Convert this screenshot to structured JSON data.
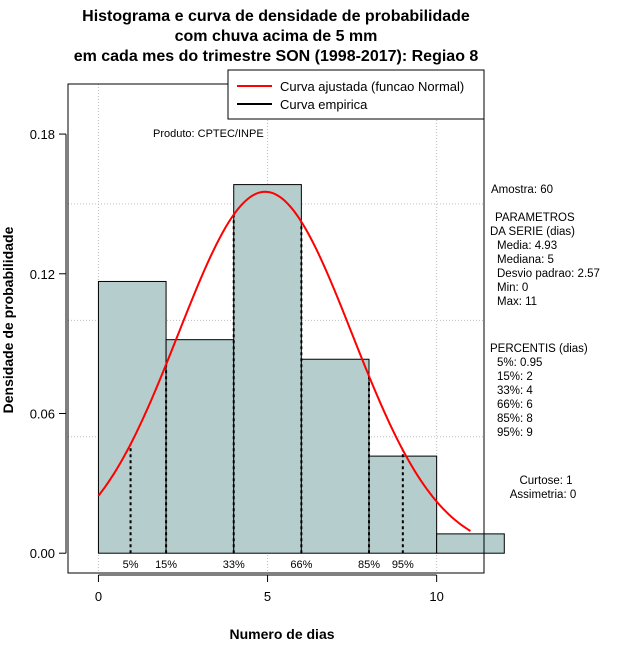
{
  "chart_data": {
    "type": "bar",
    "title": [
      "Histograma e curva de densidade de probabilidade",
      "com chuva acima de 5 mm",
      "em cada mes do trimestre SON (1998-2017): Regiao 8"
    ],
    "xlabel": "Numero de dias",
    "ylabel": "Densidade de probabilidade",
    "xlim": [
      -0.9,
      11.4
    ],
    "ylim": [
      -0.0085,
      0.2015
    ],
    "x_ticks": [
      0,
      5,
      10
    ],
    "x_tick_labels": [
      "0",
      "5",
      "10"
    ],
    "y_ticks": [
      0.0,
      0.06,
      0.12,
      0.18
    ],
    "y_tick_labels": [
      "0.00",
      "0.06",
      "0.12",
      "0.18"
    ],
    "grid_x": [
      0,
      5,
      10
    ],
    "grid_y": [
      0.05,
      0.1,
      0.15
    ],
    "bins": [
      {
        "from": 0,
        "to": 2,
        "density": 0.1167
      },
      {
        "from": 2,
        "to": 4,
        "density": 0.0917
      },
      {
        "from": 4,
        "to": 6,
        "density": 0.1583
      },
      {
        "from": 6,
        "to": 8,
        "density": 0.0833
      },
      {
        "from": 8,
        "to": 10,
        "density": 0.0417
      },
      {
        "from": 10,
        "to": 12,
        "density": 0.0083
      }
    ],
    "normal_fit": {
      "mean": 4.93,
      "sd": 2.57,
      "x_from": 0,
      "x_to": 11
    },
    "percentile_markers": [
      {
        "label": "5%",
        "x": 0.95
      },
      {
        "label": "15%",
        "x": 2
      },
      {
        "label": "33%",
        "x": 4
      },
      {
        "label": "66%",
        "x": 6
      },
      {
        "label": "85%",
        "x": 8
      },
      {
        "label": "95%",
        "x": 9
      }
    ],
    "legend": {
      "position": "top-right",
      "entries": [
        {
          "label": "Curva ajustada (funcao Normal)",
          "color": "#ff0000"
        },
        {
          "label": "Curva empirica",
          "color": "#000000"
        }
      ]
    },
    "annotation": "Produto: CPTEC/INPE",
    "colors": {
      "bar_fill": "#b5cdcd",
      "curve": "#ff0000",
      "grid": "#bdbdbd"
    }
  },
  "stats_panel": {
    "sample": "Amostra: 60",
    "params_title_1": "PARAMETROS",
    "params_title_2": "DA SERIE (dias)",
    "params": [
      "Media: 4.93",
      "Mediana: 5",
      "Desvio padrao: 2.57",
      "Min: 0",
      "Max: 11"
    ],
    "percentis_title": "PERCENTIS (dias)",
    "percentis": [
      "5%: 0.95",
      "15%: 2",
      "33%: 4",
      "66%: 6",
      "85%: 8",
      "95%: 9"
    ],
    "kurtosis": "Curtose: 1",
    "skewness": "Assimetria: 0"
  }
}
